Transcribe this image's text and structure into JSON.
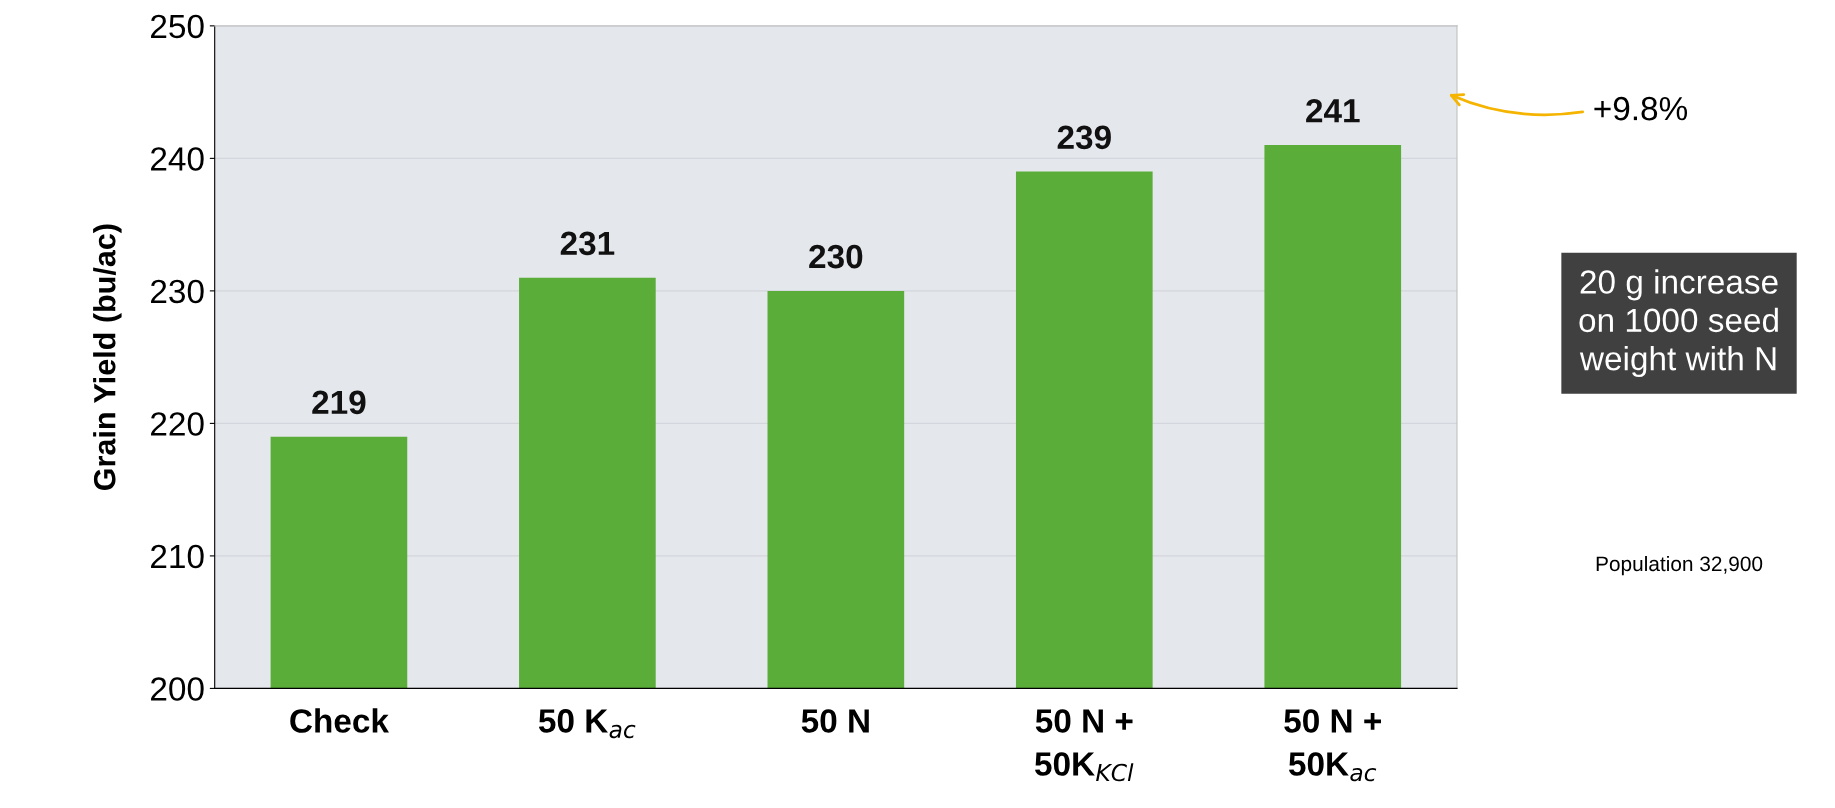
{
  "chart_data": {
    "type": "bar",
    "ylabel": "Grain Yield (bu/ac)",
    "categories": [
      "Check",
      "50 K$_{ac}$",
      "50 N",
      "50 N +\n50K$_{KCl}$",
      "50 N +\n50K$_{ac}$"
    ],
    "values": [
      219,
      231,
      230,
      239,
      241
    ],
    "color": "#5aad38",
    "data_labels": true,
    "ylim": [
      200,
      250
    ],
    "yticks": [
      200,
      210,
      220,
      230,
      240,
      250
    ],
    "grid": "y",
    "annotations": [
      "+9.8%",
      "20 g increase\non 1000 seed\nweight with N",
      "Population 32,900"
    ]
  }
}
